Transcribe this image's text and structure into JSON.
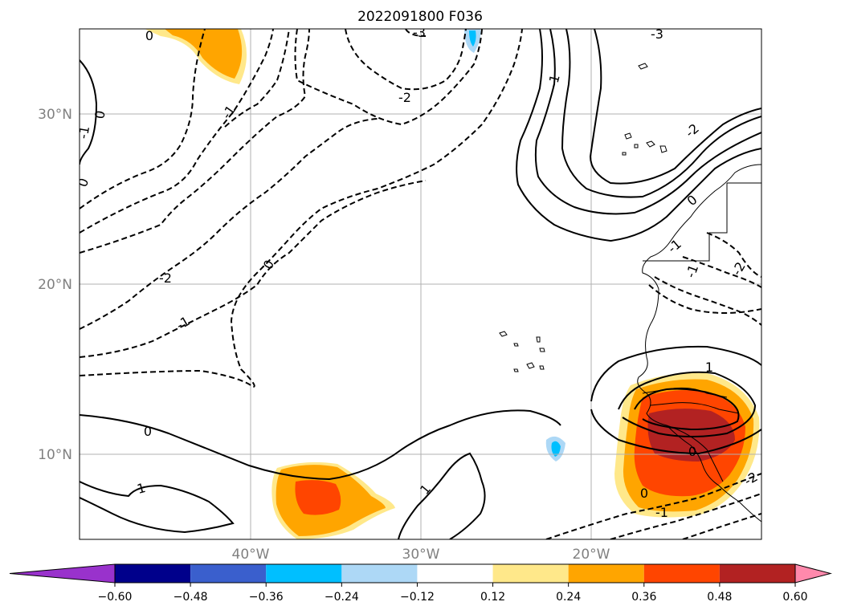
{
  "title": "2022091800 F036",
  "axes": {
    "lat_labels": [
      "30°N",
      "20°N",
      "10°N"
    ],
    "lon_labels": [
      "40°W",
      "30°W",
      "20°W"
    ]
  },
  "colorbar": {
    "extend": "both",
    "levels": [
      -0.6,
      -0.48,
      -0.36,
      -0.24,
      -0.12,
      0.12,
      0.24,
      0.36,
      0.48,
      0.6
    ],
    "labels": [
      "−0.60",
      "−0.48",
      "−0.36",
      "−0.24",
      "−0.12",
      "0.12",
      "0.24",
      "0.36",
      "0.48",
      "0.60"
    ],
    "colors": [
      "#9932CC",
      "#00008B",
      "#3A5FCD",
      "#00BFFF",
      "#ADD8F6",
      "#FFFFFF",
      "#FFE88A",
      "#FFA500",
      "#FF4500",
      "#B22222",
      "#FF89AC"
    ]
  },
  "contour_labels": {
    "top_left_zero": "0",
    "upper_left_neg_one": "-1",
    "left_edge_neg_one": "-1",
    "left_edge_zero": "0",
    "left_zero_30n": "0",
    "top_center_neg_three": "-3",
    "neg_two_center": "-2",
    "top_right_neg_three": "-3",
    "neg_one_east": "-1",
    "neg_two_west": "-2",
    "neg_one_west": "-1",
    "zero_center": "0",
    "neg_two_africa": "-2",
    "zero_africa": "0",
    "neg_one_africa": "-1",
    "neg_one_east_edge": "-1",
    "neg_two_east_edge": "-2",
    "one_south_west": "1",
    "zero_south": "0",
    "one_south_center": "1",
    "one_africa_low": "1",
    "zero_africa_low": "0",
    "zero_south_east": "0",
    "neg_one_south_east": "-1",
    "neg_two_south_east": "-2"
  }
}
